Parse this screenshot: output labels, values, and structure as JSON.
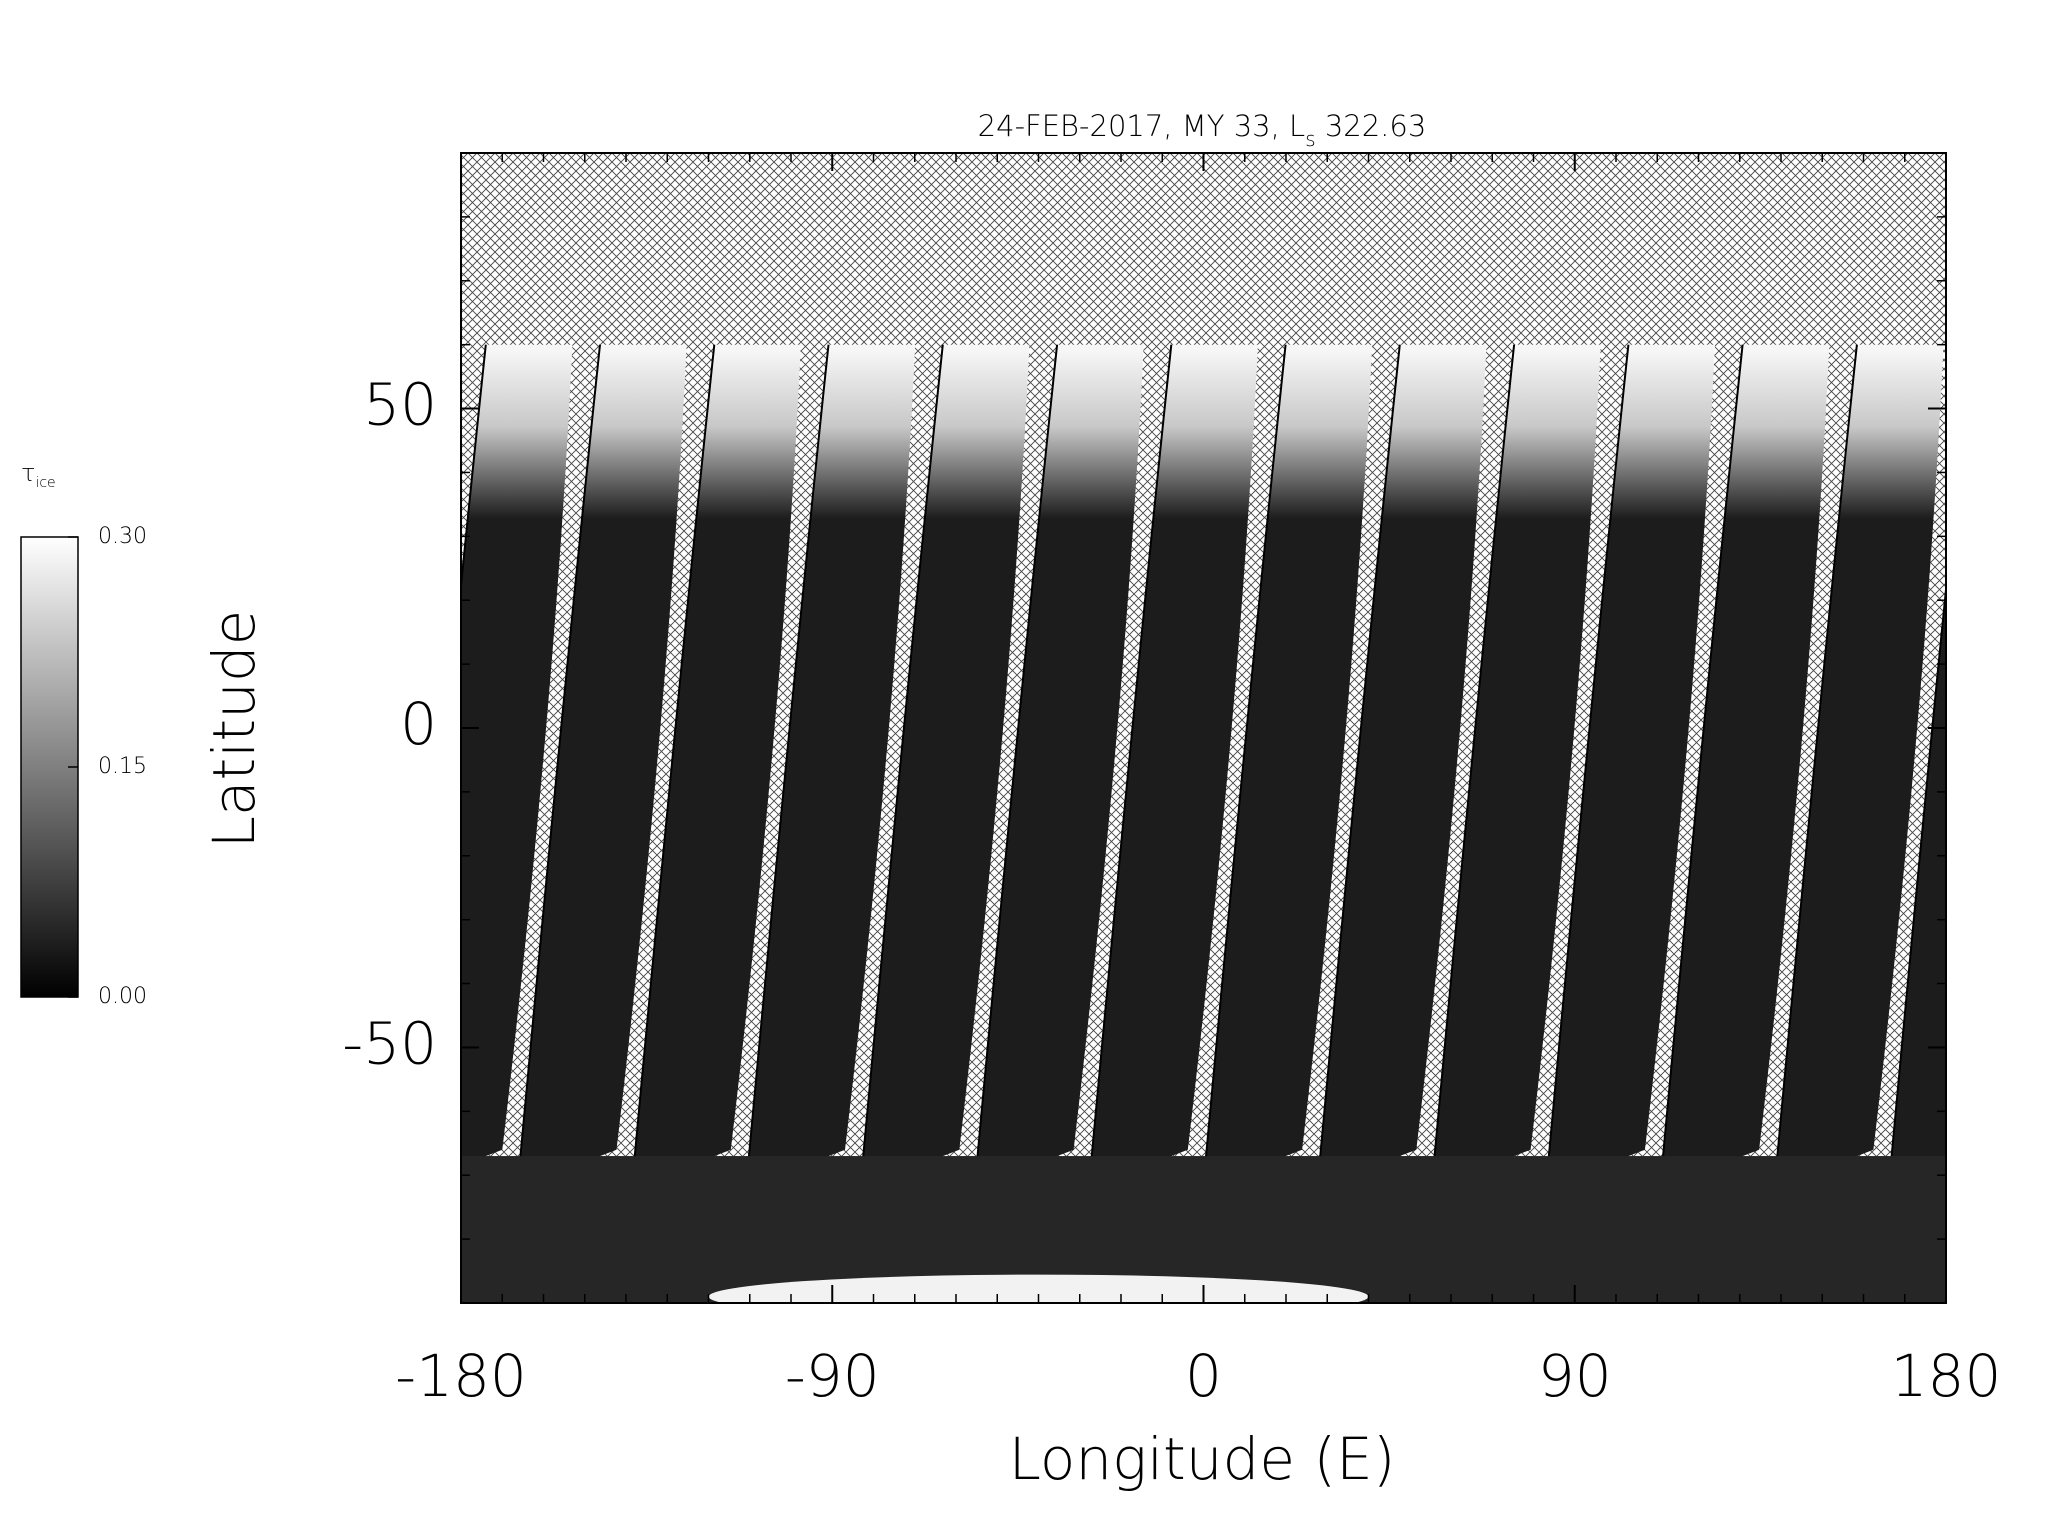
{
  "chart_data": {
    "type": "map",
    "title": [
      "24-FEB-2017, MY 33,  L",
      "s",
      " 322.63"
    ],
    "xlabel": "Longitude (E)",
    "ylabel": "Latitude",
    "xlim": [
      -180,
      180
    ],
    "ylim": [
      -90,
      90
    ],
    "xticks": [
      -180,
      -90,
      0,
      90,
      180
    ],
    "yticks": [
      -50,
      0,
      50
    ],
    "xminorticks": [
      -170,
      -160,
      -150,
      -140,
      -130,
      -120,
      -110,
      -100,
      -80,
      -70,
      -60,
      -50,
      -40,
      -30,
      -20,
      -10,
      10,
      20,
      30,
      40,
      50,
      60,
      70,
      80,
      100,
      110,
      120,
      130,
      140,
      150,
      160,
      170
    ],
    "yminorticks": [
      -80,
      -70,
      -60,
      -40,
      -30,
      -20,
      -10,
      10,
      20,
      30,
      40,
      60,
      70,
      80
    ],
    "colorbar": {
      "label": [
        "τ",
        "ice"
      ],
      "clim": [
        0,
        0.3
      ],
      "ticks": [
        {
          "value": 0,
          "label": "0.00"
        },
        0.15,
        {
          "value": 0.3,
          "label": "0.30"
        }
      ],
      "colors": [
        "#000000",
        "#ffffff"
      ]
    }
  }
}
